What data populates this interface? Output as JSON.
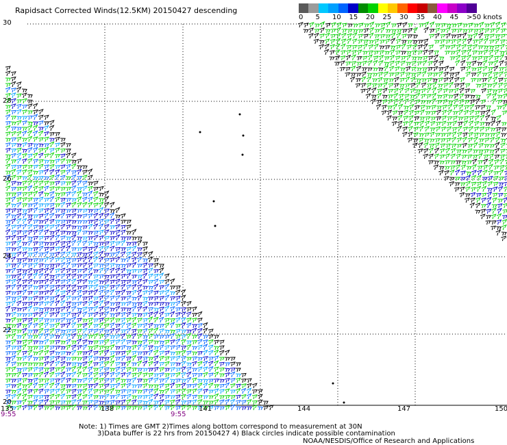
{
  "title": "Rapidsact Corrected Winds(12.5KM) 20150427 descending",
  "legend": {
    "swatches": [
      {
        "color": "#5a5a5a"
      },
      {
        "color": "#9b9b9b"
      },
      {
        "color": "#00c8ff"
      },
      {
        "color": "#00a0ff"
      },
      {
        "color": "#0064ff"
      },
      {
        "color": "#0000c8"
      },
      {
        "color": "#008c00"
      },
      {
        "color": "#00d200"
      },
      {
        "color": "#ffff00"
      },
      {
        "color": "#ffc800"
      },
      {
        "color": "#ff6400"
      },
      {
        "color": "#ff0000"
      },
      {
        "color": "#c80000"
      },
      {
        "color": "#8b5a3c"
      },
      {
        "color": "#ff00ff"
      },
      {
        "color": "#c800c8"
      },
      {
        "color": "#8c00c8"
      },
      {
        "color": "#500096"
      }
    ],
    "labels": [
      "0",
      "5",
      "10",
      "15",
      "20",
      "25",
      "30",
      "35",
      "40",
      "45",
      ">50 knots"
    ]
  },
  "map": {
    "lat_labels": [
      "30",
      "28",
      "26",
      "24",
      "22",
      "20"
    ],
    "lon_labels": [
      "135",
      "138",
      "141",
      "144",
      "147",
      "150"
    ],
    "time_labels": [
      "9:55",
      "9:55"
    ]
  },
  "notes": [
    "Note: 1) Times are GMT 2)Times along bottom correspond to measurement at 30N",
    "3)Data buffer is 22 hrs from 20150427 4) Black circles indicate possible contamination",
    "NOAA/NESDIS/Office of Research and Applications"
  ]
}
